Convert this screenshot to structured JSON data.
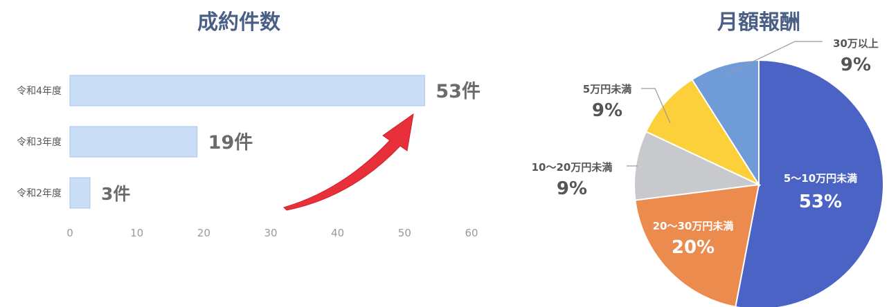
{
  "chart_data": [
    {
      "type": "bar",
      "orientation": "horizontal",
      "title": "成約件数",
      "categories": [
        "令和4年度",
        "令和3年度",
        "令和2年度"
      ],
      "values": [
        53,
        19,
        3
      ],
      "data_labels": [
        "53件",
        "19件",
        "3件"
      ],
      "xlim": [
        0,
        60
      ],
      "x_ticks": [
        "0",
        "10",
        "20",
        "30",
        "40",
        "50",
        "60"
      ],
      "bar_color": "#c9def6",
      "bar_edge_color": "#a9c6ea",
      "annotation": "red-upward-arrow",
      "arrow_color": "#e8303a",
      "grid": false
    },
    {
      "type": "pie",
      "title": "月額報酬",
      "slices": [
        {
          "label": "5～10万円未満",
          "value": 53,
          "value_label": "53%",
          "color": "#4a63c4",
          "label_color": "#ffffff"
        },
        {
          "label": "20～30万円未満",
          "value": 20,
          "value_label": "20%",
          "color": "#ec8b4e",
          "label_color": "#ffffff"
        },
        {
          "label": "10～20万円未満",
          "value": 9,
          "value_label": "9%",
          "color": "#c7c9cc",
          "label_color": "#555555"
        },
        {
          "label": "5万円未満",
          "value": 9,
          "value_label": "9%",
          "color": "#fcd03a",
          "label_color": "#555555"
        },
        {
          "label": "30万以上",
          "value": 9,
          "value_label": "9%",
          "color": "#6f9bd8",
          "label_color": "#555555"
        }
      ]
    }
  ]
}
